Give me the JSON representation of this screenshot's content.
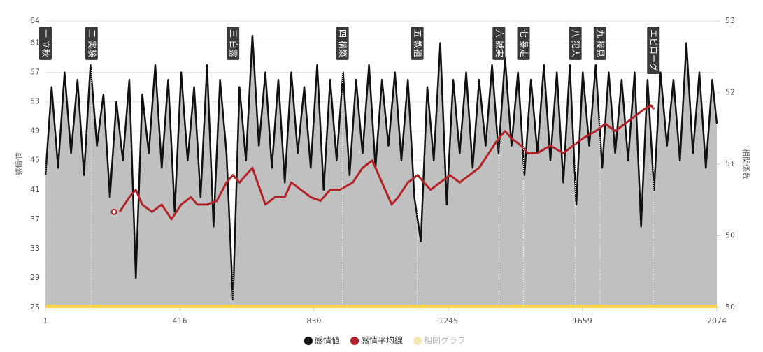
{
  "chart_data": {
    "type": "line",
    "xlim": [
      1,
      2074
    ],
    "xticks": [
      1,
      416,
      830,
      1245,
      1659,
      2074
    ],
    "ylim": [
      25,
      64
    ],
    "yticks": [
      25,
      29,
      33,
      37,
      41,
      45,
      49,
      53,
      57,
      61,
      64
    ],
    "y2lim": [
      50,
      53
    ],
    "y2ticks": [
      {
        "value": 50,
        "label": "50"
      },
      {
        "value": 50.75,
        "label": "50"
      },
      {
        "value": 51.5,
        "label": "51"
      },
      {
        "value": 52.25,
        "label": "52"
      },
      {
        "value": 53,
        "label": "53"
      }
    ],
    "ylabel": "感情値",
    "y2label": "相関係数",
    "grid": true,
    "legend": "bottom",
    "series": [
      {
        "name": "感情値",
        "color": "#111111",
        "area_color": "#bdbdbd",
        "x": [
          1,
          20,
          40,
          60,
          80,
          100,
          120,
          140,
          160,
          180,
          200,
          220,
          240,
          260,
          280,
          300,
          320,
          340,
          360,
          380,
          400,
          420,
          440,
          460,
          480,
          500,
          520,
          540,
          560,
          580,
          600,
          620,
          640,
          660,
          680,
          700,
          720,
          740,
          760,
          780,
          800,
          820,
          840,
          860,
          880,
          900,
          920,
          940,
          960,
          980,
          1000,
          1020,
          1040,
          1060,
          1080,
          1100,
          1120,
          1140,
          1160,
          1180,
          1200,
          1220,
          1240,
          1260,
          1280,
          1300,
          1320,
          1340,
          1360,
          1380,
          1400,
          1420,
          1440,
          1460,
          1480,
          1500,
          1520,
          1540,
          1560,
          1580,
          1600,
          1620,
          1640,
          1660,
          1680,
          1700,
          1720,
          1740,
          1760,
          1780,
          1800,
          1820,
          1840,
          1860,
          1880,
          1900,
          1920,
          1940,
          1960,
          1980,
          2000,
          2020,
          2040,
          2060,
          2074
        ],
        "values": [
          43,
          55,
          44,
          57,
          46,
          56,
          43,
          58,
          47,
          54,
          40,
          53,
          45,
          56,
          29,
          54,
          46,
          58,
          44,
          56,
          38,
          57,
          45,
          55,
          40,
          58,
          36,
          56,
          46,
          26,
          55,
          45,
          62,
          47,
          57,
          44,
          56,
          42,
          57,
          46,
          55,
          44,
          58,
          41,
          56,
          45,
          57,
          43,
          56,
          46,
          58,
          44,
          56,
          47,
          57,
          45,
          56,
          40,
          34,
          55,
          45,
          61,
          39,
          56,
          46,
          57,
          44,
          56,
          47,
          58,
          46,
          59,
          47,
          57,
          43,
          56,
          46,
          58,
          45,
          57,
          42,
          58,
          39,
          57,
          47,
          58,
          44,
          57,
          46,
          56,
          45,
          57,
          36,
          56,
          41,
          57,
          47,
          56,
          45,
          61,
          46,
          57,
          44,
          56,
          50
        ]
      },
      {
        "name": "感情平均線",
        "color": "#b22226",
        "x": [
          230,
          260,
          280,
          300,
          330,
          360,
          390,
          420,
          450,
          470,
          500,
          530,
          560,
          580,
          600,
          640,
          680,
          710,
          740,
          760,
          790,
          820,
          850,
          880,
          910,
          950,
          980,
          1010,
          1040,
          1070,
          1090,
          1120,
          1150,
          1190,
          1220,
          1250,
          1280,
          1310,
          1340,
          1370,
          1400,
          1420,
          1440,
          1470,
          1490,
          1520,
          1560,
          1600,
          1630,
          1660,
          1700,
          1730,
          1760,
          1790,
          1820,
          1850,
          1870,
          1880
        ],
        "values": [
          38,
          40,
          41,
          39,
          38,
          39,
          37,
          39,
          40,
          39,
          39,
          39.5,
          42,
          43,
          42,
          44,
          39,
          40,
          40,
          42,
          41,
          40,
          39.5,
          41,
          41,
          42,
          44,
          45,
          42,
          39,
          40,
          42,
          43,
          41,
          42,
          43,
          42,
          43,
          44,
          46,
          48,
          49,
          48,
          47,
          46,
          46,
          47,
          46,
          47,
          48,
          49,
          50,
          49,
          50,
          51,
          52,
          52.5,
          52
        ]
      },
      {
        "name": "相関グラフ",
        "color": "#f5e8b5"
      }
    ],
    "annotations": [
      {
        "x": 1,
        "label": "一 立秋"
      },
      {
        "x": 143,
        "label": "二 実験"
      },
      {
        "x": 580,
        "label": "三 白露"
      },
      {
        "x": 918,
        "label": "四 構築"
      },
      {
        "x": 1149,
        "label": "五 教祖"
      },
      {
        "x": 1401,
        "label": "六 誠実"
      },
      {
        "x": 1477,
        "label": "七 暴走"
      },
      {
        "x": 1637,
        "label": "八 犯人"
      },
      {
        "x": 1713,
        "label": "九 接見"
      },
      {
        "x": 1878,
        "label": "エピローグ"
      }
    ]
  }
}
